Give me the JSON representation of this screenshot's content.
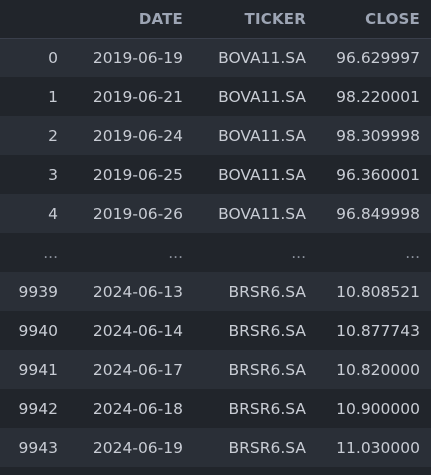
{
  "table": {
    "columns": [
      "",
      "DATE",
      "TICKER",
      "CLOSE"
    ],
    "rows": [
      {
        "index": "0",
        "date": "2019-06-19",
        "ticker": "BOVA11.SA",
        "close": "96.629997"
      },
      {
        "index": "1",
        "date": "2019-06-21",
        "ticker": "BOVA11.SA",
        "close": "98.220001"
      },
      {
        "index": "2",
        "date": "2019-06-24",
        "ticker": "BOVA11.SA",
        "close": "98.309998"
      },
      {
        "index": "3",
        "date": "2019-06-25",
        "ticker": "BOVA11.SA",
        "close": "96.360001"
      },
      {
        "index": "4",
        "date": "2019-06-26",
        "ticker": "BOVA11.SA",
        "close": "96.849998"
      },
      {
        "index": "...",
        "date": "...",
        "ticker": "...",
        "close": "..."
      },
      {
        "index": "9939",
        "date": "2024-06-13",
        "ticker": "BRSR6.SA",
        "close": "10.808521"
      },
      {
        "index": "9940",
        "date": "2024-06-14",
        "ticker": "BRSR6.SA",
        "close": "10.877743"
      },
      {
        "index": "9941",
        "date": "2024-06-17",
        "ticker": "BRSR6.SA",
        "close": "10.820000"
      },
      {
        "index": "9942",
        "date": "2024-06-18",
        "ticker": "BRSR6.SA",
        "close": "10.900000"
      },
      {
        "index": "9943",
        "date": "2024-06-19",
        "ticker": "BRSR6.SA",
        "close": "11.030000"
      }
    ]
  }
}
